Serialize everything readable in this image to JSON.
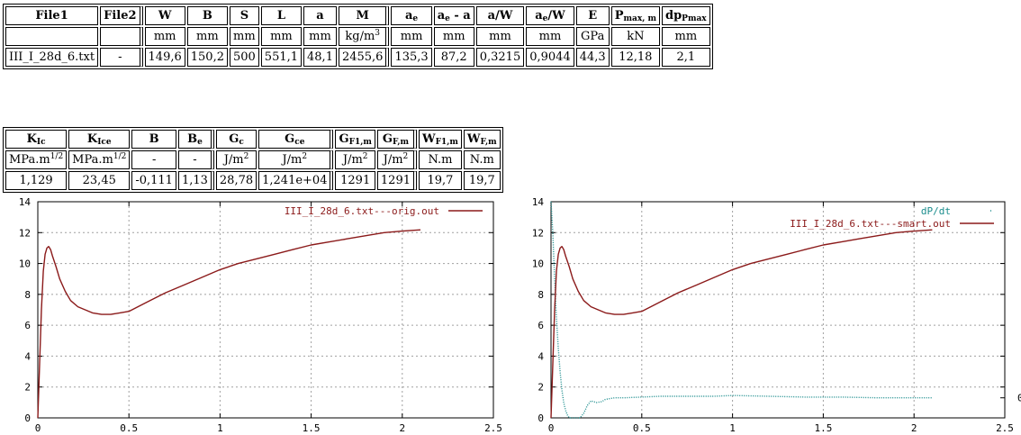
{
  "table1": {
    "header": [
      {
        "t": "File1",
        "s": ""
      },
      {
        "t": "File2",
        "s": ""
      },
      {
        "t": "W",
        "s": ""
      },
      {
        "t": "B",
        "s": ""
      },
      {
        "t": "S",
        "s": ""
      },
      {
        "t": "L",
        "s": ""
      },
      {
        "t": "a",
        "s": ""
      },
      {
        "t": "M",
        "s": ""
      },
      {
        "t": "a",
        "s": "e"
      },
      {
        "t": "a",
        "s": "e",
        "t2": " - a"
      },
      {
        "t": "a/W",
        "s": ""
      },
      {
        "t": "a",
        "s": "e",
        "t2": "/W"
      },
      {
        "t": "E",
        "s": ""
      },
      {
        "t": "P",
        "s": "max, m"
      },
      {
        "t": "dp",
        "s": "Pmax"
      }
    ],
    "units": [
      "",
      "",
      "mm",
      "mm",
      "mm",
      "mm",
      "mm",
      "kg/m",
      "mm",
      "mm",
      "mm",
      "mm",
      "GPa",
      "kN",
      "mm"
    ],
    "units_sup": {
      "7": "3"
    },
    "values": [
      "III_I_28d_6.txt",
      "-",
      "149,6",
      "150,2",
      "500",
      "551,1",
      "48,1",
      "2455,6",
      "135,3",
      "87,2",
      "0,3215",
      "0,9044",
      "44,3",
      "12,18",
      "2,1"
    ]
  },
  "table2": {
    "header": [
      {
        "t": "K",
        "s": "Ic"
      },
      {
        "t": "K",
        "s": "Ice"
      },
      {
        "t": "B",
        "s": ""
      },
      {
        "t": "B",
        "s": "e"
      },
      {
        "t": "G",
        "s": "c"
      },
      {
        "t": "G",
        "s": "ce"
      },
      {
        "t": "G",
        "s": "F1,m"
      },
      {
        "t": "G",
        "s": "F,m"
      },
      {
        "t": "W",
        "s": "F1,m"
      },
      {
        "t": "W",
        "s": "F,m"
      }
    ],
    "units": [
      "MPa.m",
      "MPa.m",
      "-",
      "-",
      "J/m",
      "J/m",
      "J/m",
      "J/m",
      "N.m",
      "N.m"
    ],
    "units_sup": {
      "0": "1/2",
      "1": "1/2",
      "4": "2",
      "5": "2",
      "6": "2",
      "7": "2"
    },
    "values": [
      "1,129",
      "23,45",
      "-0,111",
      "1,13",
      "28,78",
      "1,241e+04",
      "1291",
      "1291",
      "19,7",
      "19,7"
    ]
  },
  "chart_data": [
    {
      "type": "line",
      "title": "",
      "xlabel": "",
      "ylabel": "",
      "xlim": [
        0,
        2.5
      ],
      "ylim": [
        0,
        14
      ],
      "xticks": [
        "0",
        "0.5",
        "1",
        "1.5",
        "2",
        "2.5"
      ],
      "yticks": [
        "0",
        "2",
        "4",
        "6",
        "8",
        "10",
        "12",
        "14"
      ],
      "grid": true,
      "legend": "top-right",
      "series": [
        {
          "name": "III_I_28d_6.txt---orig.out",
          "color": "#8b1a1a",
          "x": [
            0,
            0.01,
            0.02,
            0.03,
            0.04,
            0.05,
            0.06,
            0.07,
            0.08,
            0.1,
            0.12,
            0.15,
            0.18,
            0.22,
            0.26,
            0.3,
            0.35,
            0.4,
            0.45,
            0.5,
            0.6,
            0.7,
            0.8,
            0.9,
            1.0,
            1.1,
            1.2,
            1.3,
            1.4,
            1.5,
            1.6,
            1.7,
            1.8,
            1.9,
            2.0,
            2.1
          ],
          "y": [
            0,
            3.5,
            7.0,
            9.5,
            10.6,
            11.0,
            11.1,
            10.9,
            10.5,
            9.8,
            9.0,
            8.2,
            7.6,
            7.2,
            7.0,
            6.8,
            6.7,
            6.7,
            6.8,
            6.9,
            7.5,
            8.1,
            8.6,
            9.1,
            9.6,
            10.0,
            10.3,
            10.6,
            10.9,
            11.2,
            11.4,
            11.6,
            11.8,
            12.0,
            12.1,
            12.18
          ]
        }
      ]
    },
    {
      "type": "line",
      "title": "",
      "xlabel": "",
      "ylabel": "",
      "xlim": [
        0,
        2.5
      ],
      "ylim": [
        0,
        14
      ],
      "xticks": [
        "0",
        "0.5",
        "1",
        "1.5",
        "2",
        "2.5"
      ],
      "yticks": [
        "0",
        "2",
        "4",
        "6",
        "8",
        "10",
        "12",
        "14"
      ],
      "y2ticks": [
        "0"
      ],
      "grid": true,
      "legend": "top-right",
      "series": [
        {
          "name": "dP/dt",
          "color": "#1a8c8c",
          "dotted": true,
          "x": [
            0.0,
            0.01,
            0.02,
            0.03,
            0.04,
            0.05,
            0.06,
            0.07,
            0.08,
            0.09,
            0.1,
            0.12,
            0.14,
            0.16,
            0.18,
            0.2,
            0.22,
            0.25,
            0.28,
            0.3,
            0.35,
            0.4,
            0.5,
            0.6,
            0.7,
            0.8,
            0.9,
            1.0,
            1.2,
            1.4,
            1.6,
            1.8,
            2.0,
            2.1
          ],
          "y": [
            14.5,
            12,
            9,
            6.5,
            4.5,
            3,
            1.8,
            1.0,
            0.5,
            0.2,
            0,
            0,
            0,
            0,
            0.3,
            0.8,
            1.1,
            1.0,
            1.05,
            1.2,
            1.3,
            1.3,
            1.35,
            1.4,
            1.4,
            1.4,
            1.4,
            1.45,
            1.4,
            1.35,
            1.35,
            1.3,
            1.3,
            1.3
          ]
        },
        {
          "name": "III_I_28d_6.txt---smart.out",
          "color": "#8b1a1a",
          "x": [
            0,
            0.01,
            0.02,
            0.03,
            0.04,
            0.05,
            0.06,
            0.07,
            0.08,
            0.1,
            0.12,
            0.15,
            0.18,
            0.22,
            0.26,
            0.3,
            0.35,
            0.4,
            0.45,
            0.5,
            0.6,
            0.7,
            0.8,
            0.9,
            1.0,
            1.1,
            1.2,
            1.3,
            1.4,
            1.5,
            1.6,
            1.7,
            1.8,
            1.9,
            2.0,
            2.1
          ],
          "y": [
            0,
            3.5,
            7.0,
            9.5,
            10.6,
            11.0,
            11.1,
            10.9,
            10.5,
            9.8,
            9.0,
            8.2,
            7.6,
            7.2,
            7.0,
            6.8,
            6.7,
            6.7,
            6.8,
            6.9,
            7.5,
            8.1,
            8.6,
            9.1,
            9.6,
            10.0,
            10.3,
            10.6,
            10.9,
            11.2,
            11.4,
            11.6,
            11.8,
            12.0,
            12.1,
            12.18
          ]
        }
      ]
    }
  ]
}
